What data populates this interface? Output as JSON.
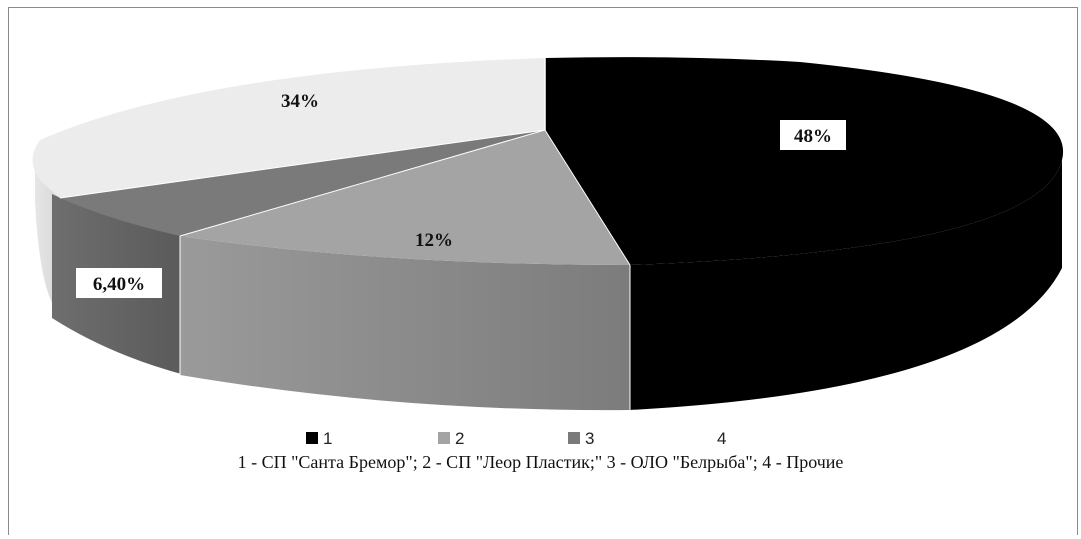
{
  "chart_data": {
    "type": "pie",
    "three_d": true,
    "slices": [
      {
        "legend": "1",
        "label": "48%",
        "value": 48,
        "color": "#000000",
        "label_box": true
      },
      {
        "legend": "2",
        "label": "12%",
        "value": 12,
        "color": "#a4a4a4",
        "label_box": false
      },
      {
        "legend": "3",
        "label": "6,40%",
        "value": 6.4,
        "color": "#7a7a7a",
        "label_box": true
      },
      {
        "legend": "4",
        "label": "34%",
        "value": 34,
        "color": "#ececec",
        "label_box": false
      }
    ],
    "legend_position": "bottom",
    "caption": "1 - СП \"Санта Бремор\"; 2 - СП  \"Леор Пластик;\" 3 - ОЛО \"Белрыба\"; 4 - Прочие"
  }
}
